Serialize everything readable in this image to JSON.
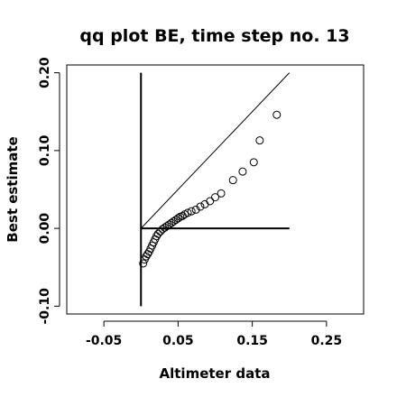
{
  "chart_data": {
    "type": "scatter",
    "title": "qq plot BE, time step no. 13",
    "xlabel": "Altimeter data",
    "ylabel": "Best estimate",
    "xlim": [
      -0.1,
      0.3
    ],
    "ylim": [
      -0.11,
      0.21
    ],
    "x_ticks": [
      -0.05,
      0.05,
      0.15,
      0.25
    ],
    "x_tick_labels": [
      "-0.05",
      "0.05",
      "0.15",
      "0.25"
    ],
    "y_ticks": [
      -0.1,
      0.0,
      0.1,
      0.2
    ],
    "y_tick_labels": [
      "-0.10",
      "0.00",
      "0.10",
      "0.20"
    ],
    "grid": false,
    "legend": "none",
    "marker": "open-circle",
    "reference_lines": [
      {
        "name": "identity",
        "x": [
          0.0,
          0.2
        ],
        "y": [
          0.0,
          0.2
        ]
      },
      {
        "name": "horizontal",
        "x": [
          0.0,
          0.2
        ],
        "y": [
          0.0,
          0.0
        ]
      },
      {
        "name": "vertical",
        "x": [
          0.0,
          0.0
        ],
        "y": [
          -0.1,
          0.2
        ]
      }
    ],
    "series": [
      {
        "x": [
          0.003,
          0.005,
          0.007,
          0.009,
          0.011,
          0.013,
          0.015,
          0.017,
          0.019,
          0.021,
          0.023,
          0.026,
          0.029,
          0.032,
          0.035,
          0.038,
          0.041,
          0.044,
          0.047,
          0.05,
          0.053,
          0.056,
          0.059,
          0.063,
          0.068,
          0.074,
          0.08,
          0.086,
          0.093,
          0.1,
          0.108,
          0.124,
          0.137,
          0.152,
          0.16,
          0.183
        ],
        "y": [
          -0.045,
          -0.04,
          -0.036,
          -0.033,
          -0.03,
          -0.026,
          -0.022,
          -0.018,
          -0.014,
          -0.01,
          -0.007,
          -0.004,
          -0.001,
          0.001,
          0.003,
          0.005,
          0.007,
          0.009,
          0.011,
          0.013,
          0.015,
          0.016,
          0.018,
          0.02,
          0.022,
          0.024,
          0.028,
          0.031,
          0.035,
          0.04,
          0.045,
          0.062,
          0.073,
          0.085,
          0.113,
          0.146
        ]
      }
    ]
  }
}
